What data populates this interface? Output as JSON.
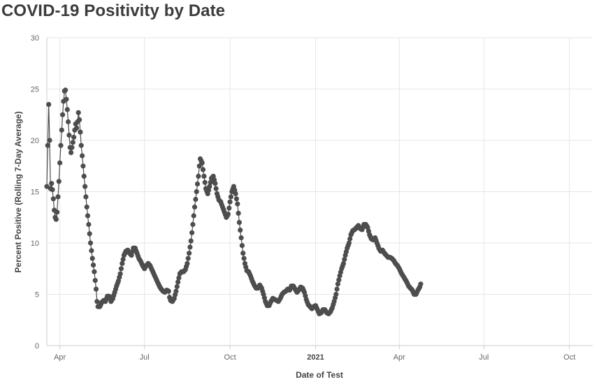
{
  "chart_data": {
    "type": "line",
    "title": "COVID-19 Positivity by Date",
    "xlabel": "Date of Test",
    "ylabel": "Percent Positive (Rolling 7-Day Average)",
    "ylim": [
      0,
      30
    ],
    "yticks": [
      0,
      5,
      10,
      15,
      20,
      25,
      30
    ],
    "x_unit": "days since 2020-03-01",
    "xlim": [
      17,
      604
    ],
    "xticks": [
      {
        "day": 31,
        "label": "Apr",
        "bold": false
      },
      {
        "day": 122,
        "label": "Jul",
        "bold": false
      },
      {
        "day": 214,
        "label": "Oct",
        "bold": false
      },
      {
        "day": 306,
        "label": "2021",
        "bold": true
      },
      {
        "day": 396,
        "label": "Apr",
        "bold": false
      },
      {
        "day": 487,
        "label": "Jul",
        "bold": false
      },
      {
        "day": 579,
        "label": "Oct",
        "bold": false
      }
    ],
    "grid": true,
    "series_color": "#4d4d4d",
    "anchor_points": [
      [
        17,
        15.5
      ],
      [
        19,
        23.5
      ],
      [
        20,
        20
      ],
      [
        21,
        15.3
      ],
      [
        22,
        15.8
      ],
      [
        23,
        15.2
      ],
      [
        24,
        14.3
      ],
      [
        25,
        13.2
      ],
      [
        26,
        12.5
      ],
      [
        27,
        12.3
      ],
      [
        28,
        13
      ],
      [
        29,
        14.5
      ],
      [
        30,
        16
      ],
      [
        31,
        17.8
      ],
      [
        32,
        19.5
      ],
      [
        33,
        21
      ],
      [
        34,
        22.5
      ],
      [
        35,
        23.8
      ],
      [
        36,
        24.8
      ],
      [
        37,
        24.9
      ],
      [
        38,
        24
      ],
      [
        39,
        23
      ],
      [
        40,
        21.8
      ],
      [
        41,
        20.5
      ],
      [
        42,
        19.3
      ],
      [
        43,
        18.8
      ],
      [
        44,
        19.3
      ],
      [
        45,
        19.8
      ],
      [
        46,
        20.3
      ],
      [
        47,
        21
      ],
      [
        48,
        21.6
      ],
      [
        49,
        21.2
      ],
      [
        50,
        21.8
      ],
      [
        51,
        22.7
      ],
      [
        52,
        22
      ],
      [
        53,
        20.8
      ],
      [
        54,
        19.5
      ],
      [
        56,
        17.5
      ],
      [
        58,
        15.5
      ],
      [
        60,
        13.5
      ],
      [
        62,
        11.8
      ],
      [
        64,
        10
      ],
      [
        66,
        8.5
      ],
      [
        68,
        7.2
      ],
      [
        70,
        5.5
      ],
      [
        71,
        4.3
      ],
      [
        72,
        3.8
      ],
      [
        74,
        3.8
      ],
      [
        76,
        4.2
      ],
      [
        78,
        4.4
      ],
      [
        80,
        4.3
      ],
      [
        82,
        4.8
      ],
      [
        84,
        4.8
      ],
      [
        86,
        4.3
      ],
      [
        88,
        4.6
      ],
      [
        90,
        5.2
      ],
      [
        92,
        5.8
      ],
      [
        94,
        6.3
      ],
      [
        96,
        7
      ],
      [
        98,
        8
      ],
      [
        100,
        8.8
      ],
      [
        102,
        9.2
      ],
      [
        104,
        9.3
      ],
      [
        106,
        9
      ],
      [
        108,
        8.8
      ],
      [
        110,
        9.5
      ],
      [
        112,
        9.5
      ],
      [
        114,
        9
      ],
      [
        116,
        8.5
      ],
      [
        118,
        8.2
      ],
      [
        120,
        7.8
      ],
      [
        122,
        7.5
      ],
      [
        124,
        7.8
      ],
      [
        126,
        8
      ],
      [
        128,
        7.8
      ],
      [
        130,
        7.4
      ],
      [
        132,
        7
      ],
      [
        134,
        6.6
      ],
      [
        136,
        6.2
      ],
      [
        138,
        5.8
      ],
      [
        140,
        5.5
      ],
      [
        142,
        5.3
      ],
      [
        144,
        5.2
      ],
      [
        146,
        5.4
      ],
      [
        148,
        5.3
      ],
      [
        149,
        4.7
      ],
      [
        150,
        4.4
      ],
      [
        152,
        4.3
      ],
      [
        154,
        4.6
      ],
      [
        156,
        5.3
      ],
      [
        158,
        6.2
      ],
      [
        160,
        7
      ],
      [
        162,
        7.2
      ],
      [
        164,
        7.2
      ],
      [
        166,
        7.4
      ],
      [
        168,
        8
      ],
      [
        170,
        9
      ],
      [
        172,
        10.2
      ],
      [
        174,
        11.8
      ],
      [
        176,
        13.5
      ],
      [
        178,
        15
      ],
      [
        180,
        16.5
      ],
      [
        181,
        17.5
      ],
      [
        182,
        18.2
      ],
      [
        184,
        17.8
      ],
      [
        186,
        16.5
      ],
      [
        188,
        15.3
      ],
      [
        190,
        14.8
      ],
      [
        192,
        15.5
      ],
      [
        194,
        16.3
      ],
      [
        196,
        16.5
      ],
      [
        198,
        15.8
      ],
      [
        200,
        14.8
      ],
      [
        202,
        14.2
      ],
      [
        204,
        14
      ],
      [
        206,
        13.5
      ],
      [
        208,
        13
      ],
      [
        210,
        12.5
      ],
      [
        212,
        12.8
      ],
      [
        214,
        14
      ],
      [
        216,
        15
      ],
      [
        218,
        15.5
      ],
      [
        220,
        14.8
      ],
      [
        222,
        13.8
      ],
      [
        224,
        12
      ],
      [
        226,
        10.5
      ],
      [
        228,
        9
      ],
      [
        230,
        8
      ],
      [
        232,
        7.3
      ],
      [
        234,
        7.2
      ],
      [
        236,
        6.8
      ],
      [
        238,
        6.3
      ],
      [
        240,
        5.9
      ],
      [
        242,
        5.6
      ],
      [
        244,
        5.6
      ],
      [
        246,
        5.9
      ],
      [
        248,
        5.6
      ],
      [
        250,
        5
      ],
      [
        252,
        4.3
      ],
      [
        254,
        3.9
      ],
      [
        256,
        3.9
      ],
      [
        258,
        4.3
      ],
      [
        260,
        4.6
      ],
      [
        262,
        4.5
      ],
      [
        264,
        4.4
      ],
      [
        266,
        4.3
      ],
      [
        268,
        4.6
      ],
      [
        270,
        5
      ],
      [
        272,
        5.2
      ],
      [
        274,
        5.3
      ],
      [
        276,
        5.5
      ],
      [
        278,
        5.4
      ],
      [
        280,
        5.8
      ],
      [
        282,
        5.8
      ],
      [
        284,
        5.5
      ],
      [
        286,
        5.2
      ],
      [
        288,
        5.4
      ],
      [
        290,
        5.7
      ],
      [
        292,
        5.6
      ],
      [
        294,
        5.2
      ],
      [
        296,
        4.5
      ],
      [
        298,
        4
      ],
      [
        300,
        3.8
      ],
      [
        302,
        3.6
      ],
      [
        304,
        3.8
      ],
      [
        306,
        3.9
      ],
      [
        308,
        3.5
      ],
      [
        310,
        3.1
      ],
      [
        312,
        3.2
      ],
      [
        314,
        3.5
      ],
      [
        316,
        3.5
      ],
      [
        318,
        3.2
      ],
      [
        320,
        3.1
      ],
      [
        322,
        3.3
      ],
      [
        324,
        3.7
      ],
      [
        326,
        4.3
      ],
      [
        328,
        5
      ],
      [
        330,
        6
      ],
      [
        332,
        6.8
      ],
      [
        334,
        7.5
      ],
      [
        336,
        8
      ],
      [
        338,
        8.8
      ],
      [
        340,
        9.5
      ],
      [
        342,
        10
      ],
      [
        344,
        10.8
      ],
      [
        346,
        11.2
      ],
      [
        348,
        11.3
      ],
      [
        350,
        11.5
      ],
      [
        352,
        11.7
      ],
      [
        354,
        11.4
      ],
      [
        356,
        11.3
      ],
      [
        358,
        11.8
      ],
      [
        360,
        11.8
      ],
      [
        362,
        11.5
      ],
      [
        364,
        10.8
      ],
      [
        366,
        10.4
      ],
      [
        368,
        10.3
      ],
      [
        370,
        10.5
      ],
      [
        372,
        10
      ],
      [
        374,
        9.5
      ],
      [
        376,
        9.2
      ],
      [
        378,
        9.3
      ],
      [
        380,
        9
      ],
      [
        382,
        8.8
      ],
      [
        384,
        8.6
      ],
      [
        386,
        8.6
      ],
      [
        388,
        8.5
      ],
      [
        390,
        8.3
      ],
      [
        392,
        8
      ],
      [
        394,
        7.8
      ],
      [
        396,
        7.5
      ],
      [
        398,
        7.1
      ],
      [
        400,
        6.8
      ],
      [
        402,
        6.5
      ],
      [
        404,
        6.2
      ],
      [
        406,
        5.8
      ],
      [
        408,
        5.6
      ],
      [
        410,
        5.4
      ],
      [
        412,
        5
      ],
      [
        414,
        5
      ],
      [
        416,
        5.4
      ],
      [
        418,
        5.7
      ],
      [
        419,
        6
      ]
    ]
  }
}
